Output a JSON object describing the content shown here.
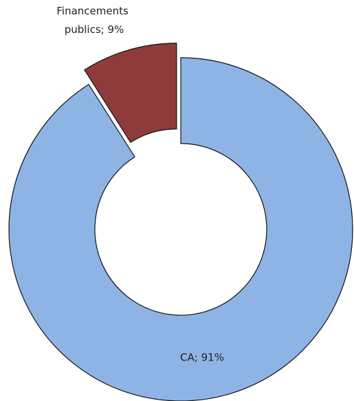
{
  "chart_data": {
    "type": "donut",
    "values": [
      91,
      9
    ],
    "value_labels": [
      "CA; 91%",
      "Financements publics; 9%"
    ],
    "colors": [
      "#8db4e5",
      "#8e3b3c"
    ],
    "hole": 0.5,
    "explode": [
      false,
      true
    ]
  }
}
